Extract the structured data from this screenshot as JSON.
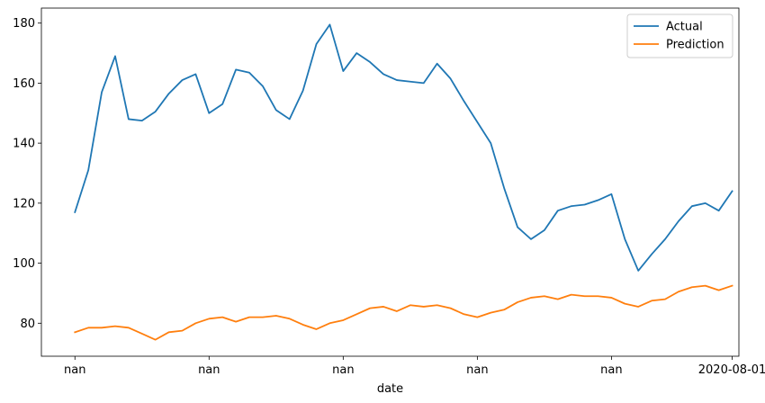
{
  "chart_data": {
    "type": "line",
    "title": "",
    "xlabel": "date",
    "ylabel": "",
    "grid": false,
    "legend_position": "top-right",
    "ylim": [
      69,
      185
    ],
    "xlim": [
      -2.5,
      49.5
    ],
    "yticks": [
      80,
      100,
      120,
      140,
      160,
      180
    ],
    "xticks": [
      {
        "x": 0,
        "label": "nan"
      },
      {
        "x": 10,
        "label": "nan"
      },
      {
        "x": 20,
        "label": "nan"
      },
      {
        "x": 30,
        "label": "nan"
      },
      {
        "x": 40,
        "label": "nan"
      },
      {
        "x": 49,
        "label": "2020-08-01"
      }
    ],
    "x": [
      0,
      1,
      2,
      3,
      4,
      5,
      6,
      7,
      8,
      9,
      10,
      11,
      12,
      13,
      14,
      15,
      16,
      17,
      18,
      19,
      20,
      21,
      22,
      23,
      24,
      25,
      26,
      27,
      28,
      29,
      30,
      31,
      32,
      33,
      34,
      35,
      36,
      37,
      38,
      39,
      40,
      41,
      42,
      43,
      44,
      45,
      46,
      47,
      48,
      49
    ],
    "series": [
      {
        "name": "Actual",
        "color": "#1f77b4",
        "values": [
          117,
          131,
          157,
          169,
          148,
          147.5,
          150.5,
          156.5,
          161,
          163,
          150,
          153,
          164.5,
          163.5,
          159,
          151,
          148,
          157.5,
          173,
          179.5,
          164,
          170,
          167,
          163,
          161,
          160.5,
          160,
          166.5,
          161.5,
          154,
          147,
          140,
          125,
          112,
          108,
          111,
          117.5,
          119,
          119.5,
          121,
          123,
          108,
          97.5,
          103,
          108,
          114,
          119,
          120,
          117.5,
          124
        ]
      },
      {
        "name": "Prediction",
        "color": "#ff7f0e",
        "values": [
          77,
          78.5,
          78.5,
          79,
          78.5,
          76.5,
          74.5,
          77,
          77.5,
          80,
          81.5,
          82,
          80.5,
          82,
          82,
          82.5,
          81.5,
          79.5,
          78,
          80,
          81,
          83,
          85,
          85.5,
          84,
          86,
          85.5,
          86,
          85,
          83,
          82,
          83.5,
          84.5,
          87,
          88.5,
          89,
          88,
          89.5,
          89,
          89,
          88.5,
          86.5,
          85.5,
          87.5,
          88,
          90.5,
          92,
          92.5,
          91,
          92.5
        ]
      }
    ]
  }
}
